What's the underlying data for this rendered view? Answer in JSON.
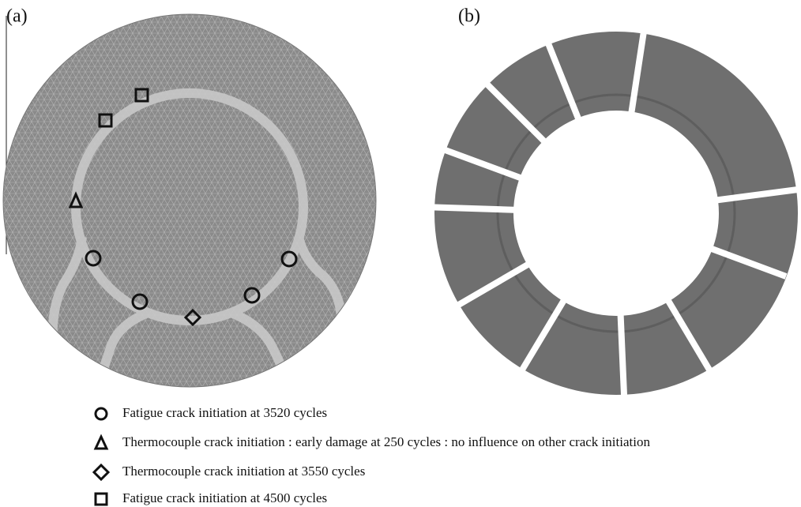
{
  "panels": [
    {
      "label": "(a)"
    },
    {
      "label": "(b)"
    }
  ],
  "legend": [
    {
      "text": "Fatigue crack initiation at 3520 cycles"
    },
    {
      "text": "Thermocouple crack initiation : early damage at 250 cycles : no influence on other crack initiation"
    },
    {
      "text": "Thermocouple crack initiation at 3550 cycles"
    },
    {
      "text": "Fatigue crack initiation at 4500 cycles"
    }
  ]
}
